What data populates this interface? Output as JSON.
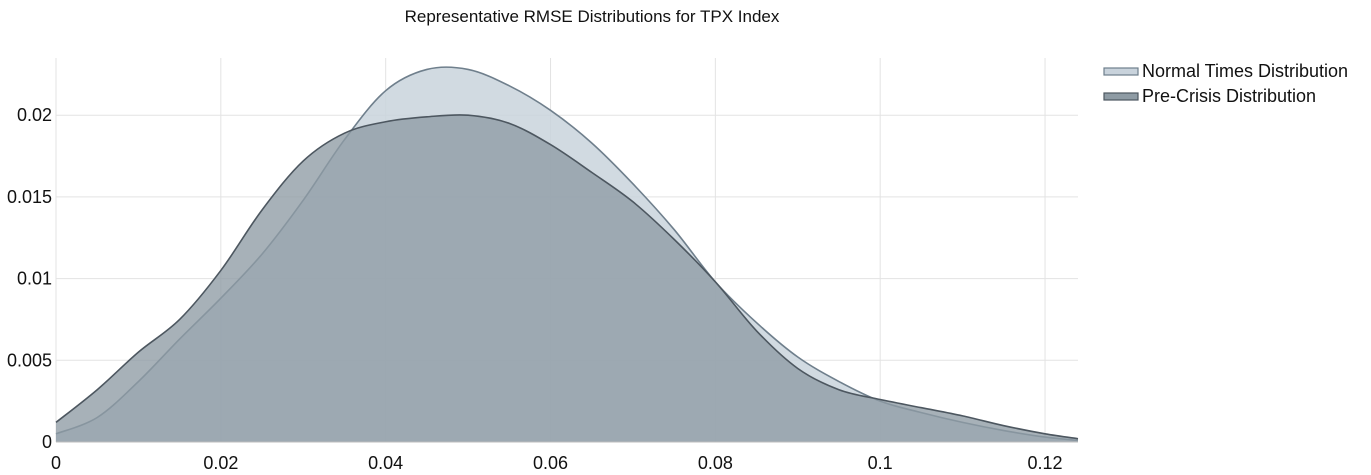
{
  "chart_data": {
    "type": "area",
    "title": "Representative RMSE Distributions for TPX Index",
    "xlabel": "",
    "ylabel": "",
    "xlim": [
      0,
      0.124
    ],
    "ylim": [
      0,
      0.0235
    ],
    "grid": true,
    "legend_position": "top-right",
    "x_ticks": [
      {
        "value": 0,
        "label": "0"
      },
      {
        "value": 0.02,
        "label": "0.02"
      },
      {
        "value": 0.04,
        "label": "0.04"
      },
      {
        "value": 0.06,
        "label": "0.06"
      },
      {
        "value": 0.08,
        "label": "0.08"
      },
      {
        "value": 0.1,
        "label": "0.1"
      },
      {
        "value": 0.12,
        "label": "0.12"
      }
    ],
    "y_ticks": [
      {
        "value": 0,
        "label": "0"
      },
      {
        "value": 0.005,
        "label": "0.005"
      },
      {
        "value": 0.01,
        "label": "0.01"
      },
      {
        "value": 0.015,
        "label": "0.015"
      },
      {
        "value": 0.02,
        "label": "0.02"
      }
    ],
    "series": [
      {
        "name": "Normal Times Distribution",
        "fill": "#c9d3dc",
        "stroke": "#6f7f8c",
        "x": [
          0,
          0.005,
          0.01,
          0.015,
          0.02,
          0.025,
          0.03,
          0.035,
          0.04,
          0.045,
          0.05,
          0.055,
          0.06,
          0.065,
          0.07,
          0.075,
          0.08,
          0.085,
          0.09,
          0.095,
          0.1,
          0.105,
          0.11,
          0.115,
          0.12,
          0.124
        ],
        "values": [
          0.0005,
          0.0015,
          0.0037,
          0.0063,
          0.0088,
          0.0115,
          0.0148,
          0.0185,
          0.0215,
          0.0228,
          0.0228,
          0.0218,
          0.0203,
          0.0183,
          0.0158,
          0.013,
          0.0098,
          0.0073,
          0.0052,
          0.0037,
          0.0025,
          0.0018,
          0.0012,
          0.0007,
          0.0003,
          0.0001
        ]
      },
      {
        "name": "Pre-Crisis Distribution",
        "fill": "#8e9ba4",
        "stroke": "#4d5760",
        "x": [
          0,
          0.005,
          0.01,
          0.015,
          0.02,
          0.025,
          0.03,
          0.035,
          0.04,
          0.045,
          0.05,
          0.055,
          0.06,
          0.065,
          0.07,
          0.075,
          0.08,
          0.085,
          0.09,
          0.095,
          0.1,
          0.105,
          0.11,
          0.115,
          0.12,
          0.124
        ],
        "values": [
          0.0012,
          0.0032,
          0.0055,
          0.0075,
          0.0105,
          0.0142,
          0.0172,
          0.0189,
          0.0196,
          0.0199,
          0.02,
          0.0195,
          0.0182,
          0.0165,
          0.0147,
          0.0124,
          0.0098,
          0.0068,
          0.0045,
          0.0032,
          0.0026,
          0.0021,
          0.0016,
          0.001,
          0.0005,
          0.0002
        ]
      }
    ]
  }
}
